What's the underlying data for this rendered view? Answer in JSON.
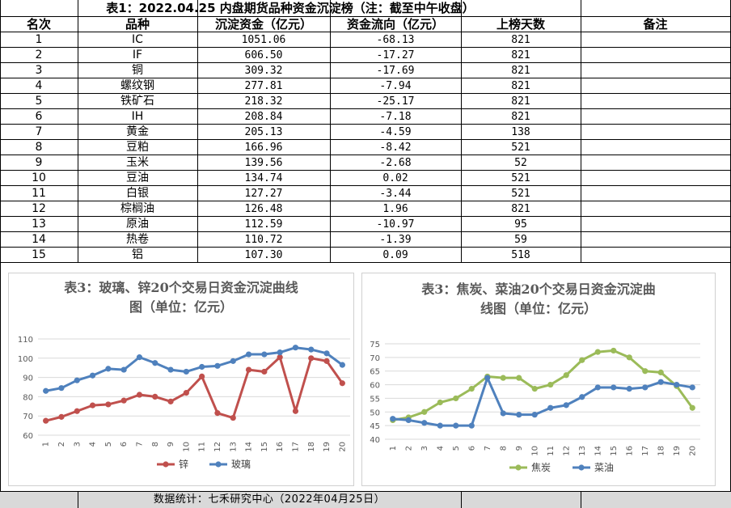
{
  "table": {
    "title": "表1：2022.04.25 内盘期货品种资金沉淀榜（注：截至中午收盘）",
    "headers": [
      "名次",
      "品种",
      "沉淀资金（亿元）",
      "资金流向（亿元）",
      "上榜天数",
      "备注"
    ],
    "rows": [
      {
        "rank": "1",
        "name": "IC",
        "amount": "1051.06",
        "flow": "-68.13",
        "days": "821"
      },
      {
        "rank": "2",
        "name": "IF",
        "amount": "606.50",
        "flow": "-17.27",
        "days": "821"
      },
      {
        "rank": "3",
        "name": "铜",
        "amount": "309.32",
        "flow": "-17.69",
        "days": "821"
      },
      {
        "rank": "4",
        "name": "螺纹钢",
        "amount": "277.81",
        "flow": "-7.94",
        "days": "821"
      },
      {
        "rank": "5",
        "name": "铁矿石",
        "amount": "218.32",
        "flow": "-25.17",
        "days": "821"
      },
      {
        "rank": "6",
        "name": "IH",
        "amount": "208.84",
        "flow": "-7.18",
        "days": "821"
      },
      {
        "rank": "7",
        "name": "黄金",
        "amount": "205.13",
        "flow": "-4.59",
        "days": "138"
      },
      {
        "rank": "8",
        "name": "豆粕",
        "amount": "166.96",
        "flow": "-8.42",
        "days": "521"
      },
      {
        "rank": "9",
        "name": "玉米",
        "amount": "139.56",
        "flow": "-2.68",
        "days": "52"
      },
      {
        "rank": "10",
        "name": "豆油",
        "amount": "134.74",
        "flow": "0.02",
        "days": "521"
      },
      {
        "rank": "11",
        "name": "白银",
        "amount": "127.27",
        "flow": "-3.44",
        "days": "521"
      },
      {
        "rank": "12",
        "name": "棕榈油",
        "amount": "126.48",
        "flow": "1.96",
        "days": "821"
      },
      {
        "rank": "13",
        "name": "原油",
        "amount": "112.59",
        "flow": "-10.97",
        "days": "95"
      },
      {
        "rank": "14",
        "name": "热卷",
        "amount": "110.72",
        "flow": "-1.39",
        "days": "59"
      },
      {
        "rank": "15",
        "name": "铝",
        "amount": "107.30",
        "flow": "0.09",
        "days": "518"
      }
    ]
  },
  "footer": "数据统计：七禾研究中心（2022年04月25日）",
  "chart_data": [
    {
      "type": "line",
      "title": "表3：玻璃、锌20个交易日资金沉淀曲线图（单位：亿元）",
      "title_lines": [
        "表3：玻璃、锌20个交易日资金沉淀曲线",
        "图（单位：亿元）"
      ],
      "x": [
        "1",
        "2",
        "3",
        "4",
        "5",
        "6",
        "7",
        "8",
        "9",
        "10",
        "11",
        "12",
        "13",
        "14",
        "15",
        "16",
        "17",
        "18",
        "19",
        "20"
      ],
      "ylim": [
        60,
        110
      ],
      "yticks": [
        "60",
        "70",
        "80",
        "90",
        "100",
        "110"
      ],
      "grid": true,
      "legend": "bottom",
      "series": [
        {
          "name": "锌",
          "color": "#c0504d",
          "values": [
            67.5,
            69.5,
            72.5,
            75.5,
            76,
            78,
            81,
            80,
            77.5,
            82,
            90.5,
            71.5,
            69,
            94,
            93,
            100.5,
            72.5,
            100,
            98.5,
            87
          ]
        },
        {
          "name": "玻璃",
          "color": "#4f81bd",
          "values": [
            83,
            84.5,
            88.5,
            91,
            94.5,
            94,
            100.5,
            97.5,
            94,
            93,
            95.5,
            96,
            98.5,
            102,
            102,
            103,
            105.5,
            104.5,
            102.5,
            96.5
          ]
        }
      ]
    },
    {
      "type": "line",
      "title": "表3：焦炭、菜油20个交易日资金沉淀曲线图（单位：亿元）",
      "title_lines": [
        "表3：焦炭、菜油20个交易日资金沉淀曲",
        "线图（单位：亿元）"
      ],
      "x": [
        "1",
        "2",
        "3",
        "4",
        "5",
        "6",
        "7",
        "8",
        "9",
        "10",
        "11",
        "12",
        "13",
        "14",
        "15",
        "16",
        "17",
        "18",
        "19",
        "20"
      ],
      "ylim": [
        40,
        75
      ],
      "yticks": [
        "40",
        "45",
        "50",
        "55",
        "60",
        "65",
        "70",
        "75"
      ],
      "grid": true,
      "legend": "bottom",
      "series": [
        {
          "name": "焦炭",
          "color": "#9bbb59",
          "values": [
            47,
            48,
            50,
            53.5,
            55,
            58.5,
            63,
            62.5,
            62.5,
            58.5,
            60,
            63.5,
            69,
            72,
            72.5,
            70,
            65,
            64.5,
            59.5,
            51.5
          ]
        },
        {
          "name": "菜油",
          "color": "#4f81bd",
          "values": [
            47.5,
            47,
            46,
            45,
            45,
            45,
            62.5,
            49.5,
            49,
            49,
            51.5,
            52.5,
            55.5,
            59,
            59,
            58.5,
            59,
            61,
            60,
            59
          ]
        }
      ]
    }
  ]
}
